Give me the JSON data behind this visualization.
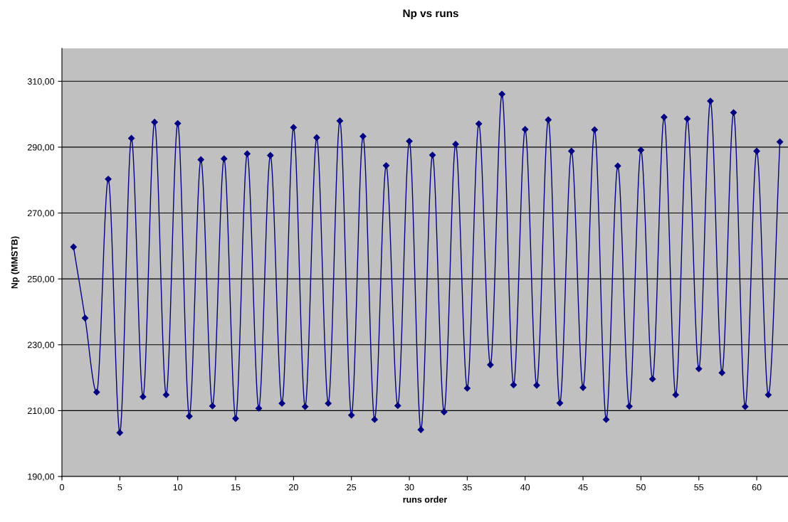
{
  "chart_data": {
    "type": "line",
    "title": "Np vs runs",
    "xlabel": "runs order",
    "ylabel": "Np (MMSTB)",
    "x": [
      1,
      2,
      3,
      4,
      5,
      6,
      7,
      8,
      9,
      10,
      11,
      12,
      13,
      14,
      15,
      16,
      17,
      18,
      19,
      20,
      21,
      22,
      23,
      24,
      25,
      26,
      27,
      28,
      29,
      30,
      31,
      32,
      33,
      34,
      35,
      36,
      37,
      38,
      39,
      40,
      41,
      42,
      43,
      44,
      45,
      46,
      47,
      48,
      49,
      50,
      51,
      52,
      53,
      54,
      55,
      56,
      57,
      58,
      59,
      60,
      61,
      62
    ],
    "series": [
      {
        "color": "#000080",
        "values": [
          259.7,
          238.1,
          215.6,
          280.3,
          203.3,
          292.7,
          214.2,
          297.6,
          214.8,
          297.2,
          208.3,
          286.2,
          211.4,
          286.5,
          207.6,
          288.0,
          210.7,
          287.5,
          212.2,
          296.0,
          211.2,
          292.9,
          212.2,
          298.0,
          208.6,
          293.3,
          207.3,
          284.4,
          211.5,
          291.8,
          204.2,
          287.6,
          209.6,
          290.9,
          216.8,
          297.1,
          223.9,
          306.1,
          217.8,
          295.4,
          217.7,
          298.3,
          212.3,
          288.8,
          217.0,
          295.3,
          207.3,
          284.3,
          211.3,
          289.1,
          219.6,
          299.1,
          214.8,
          298.6,
          222.7,
          304.0,
          221.5,
          300.5,
          211.2,
          288.8,
          214.8,
          291.6
        ]
      }
    ],
    "xlim": [
      0,
      62.7
    ],
    "xticks": [
      0,
      5,
      10,
      15,
      20,
      25,
      30,
      35,
      40,
      45,
      50,
      55,
      60
    ],
    "ylim": [
      190,
      320
    ],
    "yticks": [
      {
        "value": 190,
        "label": "190,00"
      },
      {
        "value": 210,
        "label": "210,00"
      },
      {
        "value": 230,
        "label": "230,00"
      },
      {
        "value": 250,
        "label": "250,00"
      },
      {
        "value": 270,
        "label": "270,00"
      },
      {
        "value": 290,
        "label": "290,00"
      },
      {
        "value": 310,
        "label": "310,00"
      }
    ],
    "grid": "y",
    "marker": "diamond",
    "line_style": "solid",
    "legend": false
  }
}
